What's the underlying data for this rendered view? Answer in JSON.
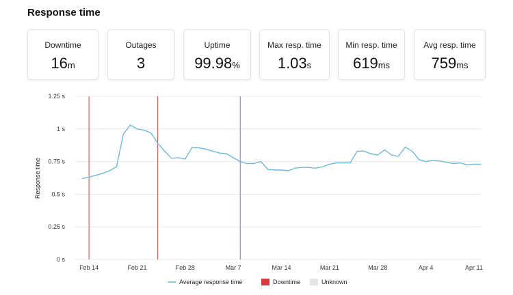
{
  "page": {
    "title": "Response time"
  },
  "cards": [
    {
      "label": "Downtime",
      "value": "16",
      "unit": "m"
    },
    {
      "label": "Outages",
      "value": "3",
      "unit": ""
    },
    {
      "label": "Uptime",
      "value": "99.98",
      "unit": "%"
    },
    {
      "label": "Max resp. time",
      "value": "1.03",
      "unit": "s"
    },
    {
      "label": "Min resp. time",
      "value": "619",
      "unit": "ms"
    },
    {
      "label": "Avg resp. time",
      "value": "759",
      "unit": "ms"
    }
  ],
  "colors": {
    "line": "#6db8de",
    "downtime": "#d63b3b",
    "downtime_line_1": "#c94a4a",
    "downtime_line_2": "#c94a4a",
    "downtime_line_3": "#8a6ab8",
    "unknown": "#e6e6e6",
    "grid": "#e8e8e8"
  },
  "chart_data": {
    "type": "line",
    "title": "",
    "xlabel": "",
    "ylabel": "Response time",
    "ylim": [
      0,
      1.25
    ],
    "yticks": [
      {
        "value": 0,
        "label": "0 s"
      },
      {
        "value": 0.25,
        "label": "0.25 s"
      },
      {
        "value": 0.5,
        "label": "0.5 s"
      },
      {
        "value": 0.75,
        "label": "0.75 s"
      },
      {
        "value": 1,
        "label": "1 s"
      },
      {
        "value": 1.25,
        "label": "1.25 s"
      }
    ],
    "xrange": [
      "2021-02-12",
      "2021-04-12"
    ],
    "xticks": [
      {
        "date": "2021-02-14",
        "label": "Feb 14"
      },
      {
        "date": "2021-02-21",
        "label": "Feb 21"
      },
      {
        "date": "2021-02-28",
        "label": "Feb 28"
      },
      {
        "date": "2021-03-07",
        "label": "Mar 7"
      },
      {
        "date": "2021-03-14",
        "label": "Mar 14"
      },
      {
        "date": "2021-03-21",
        "label": "Mar 21"
      },
      {
        "date": "2021-03-28",
        "label": "Mar 28"
      },
      {
        "date": "2021-04-04",
        "label": "Apr 4"
      },
      {
        "date": "2021-04-11",
        "label": "Apr 11"
      }
    ],
    "grid": true,
    "legend_position": "bottom",
    "legend": [
      {
        "name": "Average response time",
        "kind": "line"
      },
      {
        "name": "Downtime",
        "kind": "box"
      },
      {
        "name": "Unknown",
        "kind": "box"
      }
    ],
    "series": [
      {
        "name": "Average response time",
        "x": [
          "2021-02-13",
          "2021-02-14",
          "2021-02-15",
          "2021-02-16",
          "2021-02-17",
          "2021-02-18",
          "2021-02-19",
          "2021-02-20",
          "2021-02-21",
          "2021-02-22",
          "2021-02-23",
          "2021-02-24",
          "2021-02-25",
          "2021-02-26",
          "2021-02-27",
          "2021-02-28",
          "2021-03-01",
          "2021-03-02",
          "2021-03-03",
          "2021-03-04",
          "2021-03-05",
          "2021-03-06",
          "2021-03-07",
          "2021-03-08",
          "2021-03-09",
          "2021-03-10",
          "2021-03-11",
          "2021-03-12",
          "2021-03-13",
          "2021-03-14",
          "2021-03-15",
          "2021-03-16",
          "2021-03-17",
          "2021-03-18",
          "2021-03-19",
          "2021-03-20",
          "2021-03-21",
          "2021-03-22",
          "2021-03-23",
          "2021-03-24",
          "2021-03-25",
          "2021-03-26",
          "2021-03-27",
          "2021-03-28",
          "2021-03-29",
          "2021-03-30",
          "2021-03-31",
          "2021-04-01",
          "2021-04-02",
          "2021-04-03",
          "2021-04-04",
          "2021-04-05",
          "2021-04-06",
          "2021-04-07",
          "2021-04-08",
          "2021-04-09",
          "2021-04-10",
          "2021-04-11",
          "2021-04-12"
        ],
        "values": [
          0.62,
          0.63,
          0.645,
          0.66,
          0.68,
          0.71,
          0.96,
          1.03,
          1.0,
          0.99,
          0.97,
          0.89,
          0.83,
          0.775,
          0.78,
          0.77,
          0.86,
          0.855,
          0.845,
          0.83,
          0.815,
          0.81,
          0.78,
          0.75,
          0.735,
          0.735,
          0.75,
          0.69,
          0.685,
          0.685,
          0.68,
          0.7,
          0.705,
          0.705,
          0.7,
          0.71,
          0.73,
          0.74,
          0.74,
          0.74,
          0.83,
          0.83,
          0.81,
          0.8,
          0.84,
          0.8,
          0.79,
          0.86,
          0.83,
          0.765,
          0.75,
          0.76,
          0.755,
          0.745,
          0.735,
          0.74,
          0.725,
          0.73,
          0.73
        ]
      }
    ],
    "downtime_markers": [
      "2021-02-14",
      "2021-02-24",
      "2021-03-08"
    ]
  }
}
